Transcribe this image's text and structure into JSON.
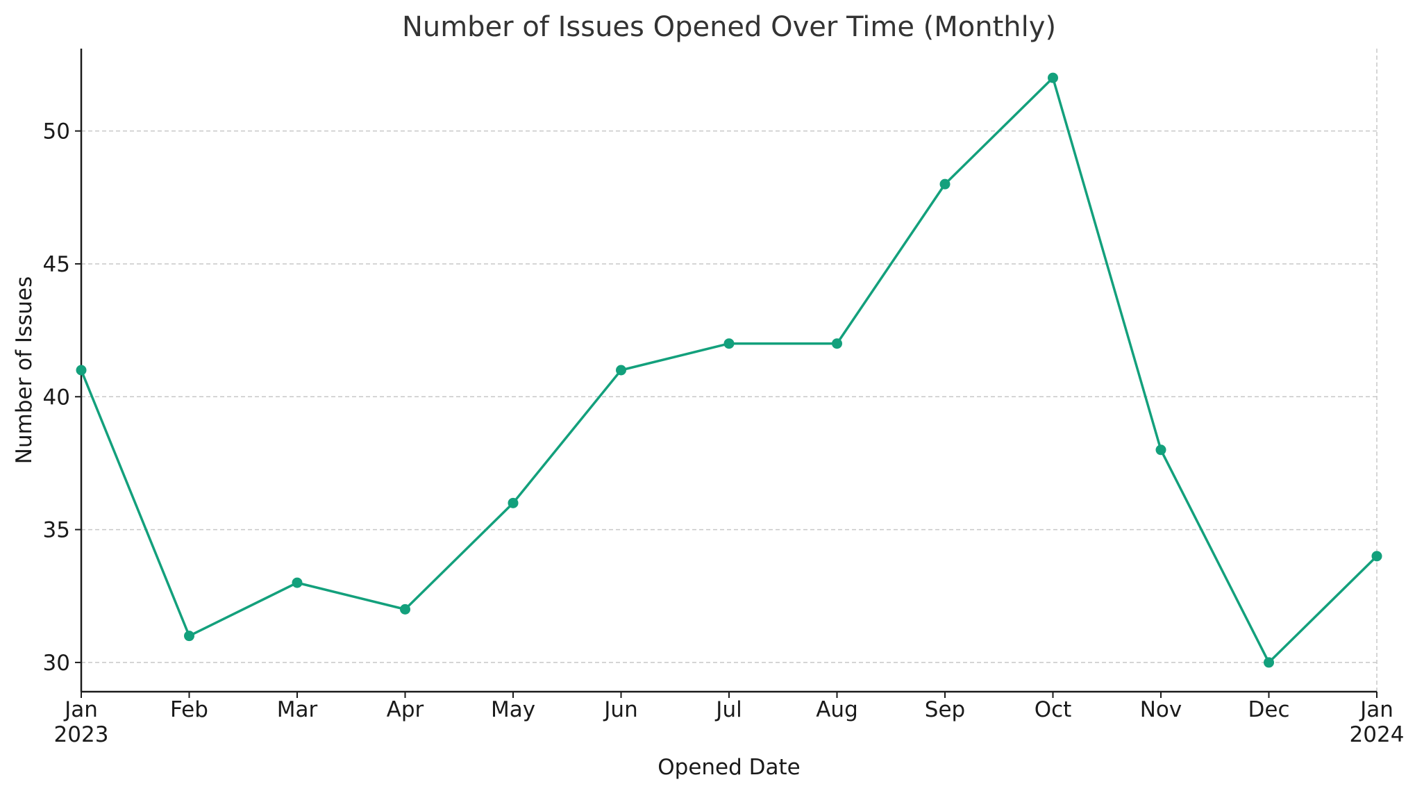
{
  "chart_data": {
    "type": "line",
    "title": "Number of Issues Opened Over Time (Monthly)",
    "xlabel": "Opened Date",
    "ylabel": "Number of Issues",
    "x": [
      "2023-01",
      "2023-02",
      "2023-03",
      "2023-04",
      "2023-05",
      "2023-06",
      "2023-07",
      "2023-08",
      "2023-09",
      "2023-10",
      "2023-11",
      "2023-12",
      "2024-01"
    ],
    "x_tick_labels": [
      {
        "month": "Jan",
        "year": "2023"
      },
      {
        "month": "Feb",
        "year": ""
      },
      {
        "month": "Mar",
        "year": ""
      },
      {
        "month": "Apr",
        "year": ""
      },
      {
        "month": "May",
        "year": ""
      },
      {
        "month": "Jun",
        "year": ""
      },
      {
        "month": "Jul",
        "year": ""
      },
      {
        "month": "Aug",
        "year": ""
      },
      {
        "month": "Sep",
        "year": ""
      },
      {
        "month": "Oct",
        "year": ""
      },
      {
        "month": "Nov",
        "year": ""
      },
      {
        "month": "Dec",
        "year": ""
      },
      {
        "month": "Jan",
        "year": "2024"
      }
    ],
    "series": [
      {
        "values": [
          41,
          31,
          33,
          32,
          36,
          41,
          42,
          42,
          48,
          52,
          38,
          30,
          34
        ],
        "color": "#13a07c",
        "marker": "circle"
      }
    ],
    "ylim": [
      28.9,
      53.1
    ],
    "y_ticks": [
      30,
      35,
      40,
      45,
      50
    ],
    "grid": "horizontal dashed",
    "legend": "none"
  }
}
